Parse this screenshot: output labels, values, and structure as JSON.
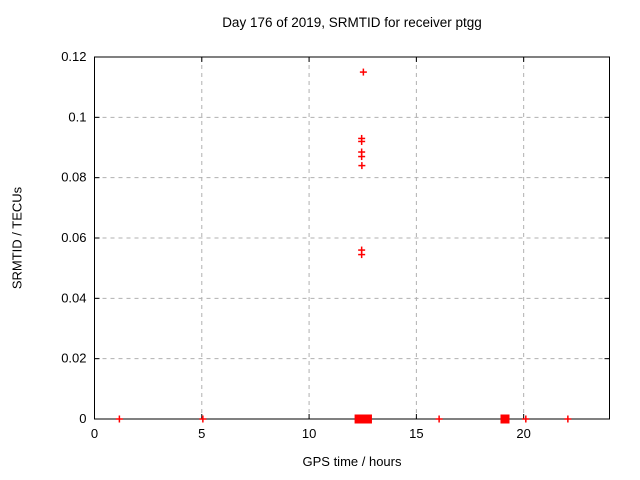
{
  "chart_data": {
    "type": "scatter",
    "title": "Day 176 of 2019, SRMTID for receiver ptgg",
    "xlabel": "GPS time / hours",
    "ylabel": "SRMTID / TECUs",
    "xlim": [
      0,
      24
    ],
    "ylim": [
      0,
      0.12
    ],
    "xticks": [
      0,
      5,
      10,
      15,
      20
    ],
    "xtick_labels": [
      "0",
      "5",
      "10",
      "15",
      "20"
    ],
    "yticks": [
      0,
      0.02,
      0.04,
      0.06,
      0.08,
      0.1,
      0.12
    ],
    "ytick_labels": [
      "0",
      "0.02",
      "0.04",
      "0.06",
      "0.08",
      "0.1",
      "0.12"
    ],
    "grid": true,
    "legend_position": "none",
    "colors": {
      "marker": "#ff0000",
      "grid": "#b0b0b0",
      "axis": "#000000",
      "text": "#000000"
    },
    "series": [
      {
        "name": "SRMTID",
        "marker": "plus",
        "points": [
          {
            "x": 12.53,
            "y": 0.115
          },
          {
            "x": 12.45,
            "y": 0.093
          },
          {
            "x": 12.45,
            "y": 0.092
          },
          {
            "x": 12.45,
            "y": 0.0885
          },
          {
            "x": 12.45,
            "y": 0.087
          },
          {
            "x": 12.46,
            "y": 0.084
          },
          {
            "x": 12.45,
            "y": 0.056
          },
          {
            "x": 12.45,
            "y": 0.0545
          },
          {
            "x": 1.16,
            "y": 0
          },
          {
            "x": 5.05,
            "y": 0
          },
          {
            "x": 12.33,
            "y": 0,
            "overlap": "dense"
          },
          {
            "x": 12.72,
            "y": 0,
            "overlap": "dense"
          },
          {
            "x": 16.06,
            "y": 0
          },
          {
            "x": 19.13,
            "y": 0,
            "overlap": "dense"
          },
          {
            "x": 20.1,
            "y": 0
          },
          {
            "x": 22.06,
            "y": 0
          }
        ]
      }
    ]
  }
}
